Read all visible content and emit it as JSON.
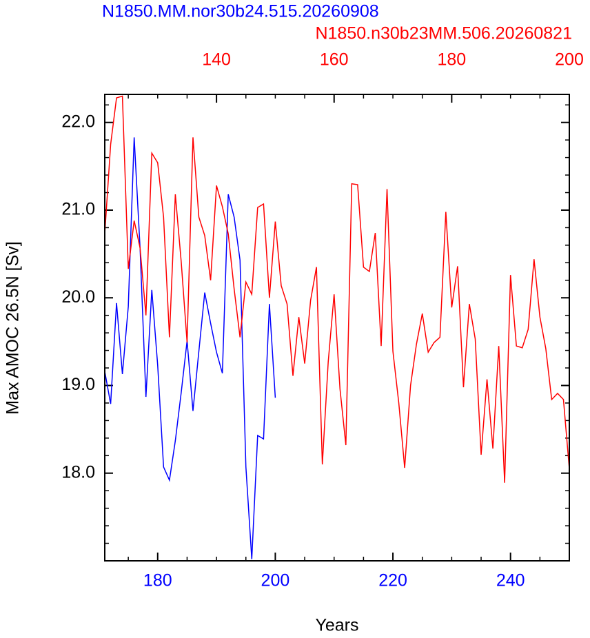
{
  "chart_data": {
    "type": "line",
    "title": "N1850.MM.nor30b24.515.20260908",
    "title_color": "#0000ff",
    "subtitle": "N1850.n30b23MM.506.20260821",
    "subtitle_color": "#ff0000",
    "x_label": "Years",
    "y_label": "Max AMOC 26.5N [Sv]",
    "xlim": [
      171,
      250
    ],
    "xticks": [
      180,
      200,
      220,
      240
    ],
    "xminorticks": [
      175,
      185,
      190,
      195,
      205,
      210,
      215,
      225,
      230,
      235,
      245,
      250
    ],
    "x2lim": [
      121,
      200
    ],
    "x2ticks": [
      140,
      160,
      180,
      200
    ],
    "x2minorticks": [
      125,
      130,
      135,
      145,
      150,
      155,
      165,
      170,
      175,
      185,
      190,
      195
    ],
    "ylim": [
      17.0,
      22.32
    ],
    "yticks": [
      {
        "value": 18,
        "label": "18.0"
      },
      {
        "value": 19,
        "label": "19.0"
      },
      {
        "value": 20,
        "label": "20.0"
      },
      {
        "value": 21,
        "label": "21.0"
      },
      {
        "value": 22,
        "label": "22.0"
      }
    ],
    "yminorticks": [
      17.2,
      17.4,
      17.6,
      17.8,
      18.2,
      18.4,
      18.6,
      18.8,
      19.2,
      19.4,
      19.6,
      19.8,
      20.2,
      20.4,
      20.6,
      20.8,
      21.2,
      21.4,
      21.6,
      21.8,
      22.2
    ],
    "series": [
      {
        "name": "N1850.MM.nor30b24.515.20260908",
        "color": "#0000ff",
        "axis": "x",
        "x": [
          171,
          172,
          173,
          174,
          175,
          176,
          177,
          178,
          179,
          180,
          181,
          182,
          183,
          184,
          185,
          186,
          187,
          188,
          189,
          190,
          191,
          192,
          193,
          194,
          195,
          196,
          197,
          198,
          199,
          200
        ],
        "values": [
          19.16,
          18.79,
          19.94,
          19.13,
          19.9,
          21.83,
          20.57,
          18.87,
          20.09,
          19.23,
          18.07,
          17.92,
          18.37,
          18.92,
          19.51,
          18.71,
          19.39,
          20.06,
          19.71,
          19.38,
          19.14,
          21.18,
          20.92,
          20.43,
          18.07,
          17.02,
          18.43,
          18.39,
          19.93,
          18.86
        ]
      },
      {
        "name": "N1850.n30b23MM.506.20260821",
        "color": "#ff0000",
        "axis": "x2",
        "x": [
          121,
          122,
          123,
          124,
          125,
          126,
          127,
          128,
          129,
          130,
          131,
          132,
          133,
          134,
          135,
          136,
          137,
          138,
          139,
          140,
          141,
          142,
          143,
          144,
          145,
          146,
          147,
          148,
          149,
          150,
          151,
          152,
          153,
          154,
          155,
          156,
          157,
          158,
          159,
          160,
          161,
          162,
          163,
          164,
          165,
          166,
          167,
          168,
          169,
          170,
          171,
          172,
          173,
          174,
          175,
          176,
          177,
          178,
          179,
          180,
          181,
          182,
          183,
          184,
          185,
          186,
          187,
          188,
          189,
          190,
          191,
          192,
          193,
          194,
          195,
          196,
          197,
          198,
          199,
          200
        ],
        "values": [
          20.73,
          21.75,
          22.28,
          22.3,
          20.33,
          20.88,
          20.57,
          19.8,
          21.65,
          21.54,
          20.92,
          19.55,
          21.18,
          20.41,
          19.49,
          21.83,
          20.92,
          20.71,
          20.2,
          21.28,
          21.04,
          20.73,
          20.1,
          19.55,
          20.18,
          20.04,
          21.03,
          21.07,
          20.0,
          20.87,
          20.14,
          19.93,
          19.11,
          19.78,
          19.25,
          19.97,
          20.35,
          18.1,
          19.27,
          20.04,
          18.96,
          18.32,
          21.3,
          21.29,
          20.35,
          20.3,
          20.74,
          19.45,
          21.24,
          19.39,
          18.8,
          18.06,
          19.0,
          19.47,
          19.82,
          19.38,
          19.49,
          19.55,
          20.98,
          19.89,
          20.36,
          18.98,
          19.93,
          19.53,
          18.21,
          19.07,
          18.28,
          19.45,
          17.89,
          20.26,
          19.45,
          19.43,
          19.64,
          20.44,
          19.78,
          19.42,
          18.84,
          18.91,
          18.84,
          18.05
        ]
      }
    ]
  }
}
